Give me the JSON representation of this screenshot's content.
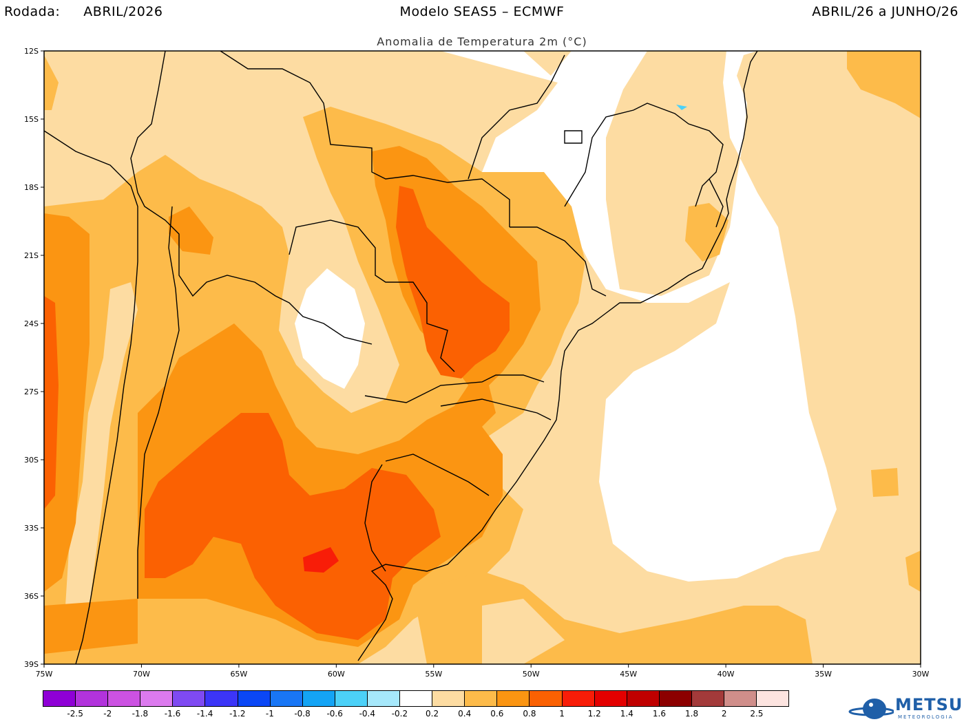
{
  "header": {
    "run_label": "Rodada:",
    "run_value": "ABRIL/2026",
    "model": "Modelo SEAS5 – ECMWF",
    "period": "ABRIL/26 a JUNHO/26"
  },
  "subtitle": "Anomalia de Temperatura 2m (°C)",
  "map": {
    "lat_labels": [
      "12S",
      "15S",
      "18S",
      "21S",
      "24S",
      "27S",
      "30S",
      "33S",
      "36S",
      "39S"
    ],
    "lon_labels": [
      "75W",
      "70W",
      "65W",
      "60W",
      "55W",
      "50W",
      "45W",
      "40W",
      "35W",
      "30W"
    ],
    "anomaly_levels": [
      {
        "range": "0.2 to 0.4",
        "color": "#fddca2"
      },
      {
        "range": "0.4 to 0.6",
        "color": "#fdbb4a"
      },
      {
        "range": "0.6 to 0.8",
        "color": "#fb9512"
      },
      {
        "range": "0.8 to 1",
        "color": "#fb6102"
      },
      {
        "range": "1 to 1.2",
        "color": "#f81d08"
      }
    ]
  },
  "colorbar": {
    "colors": [
      "#8f00d6",
      "#b233dc",
      "#cc52e2",
      "#dc7aee",
      "#7f4af2",
      "#3c35f7",
      "#0b47f5",
      "#1976f5",
      "#14a4f5",
      "#4cd1f8",
      "#a6e8fb",
      "#ffffff",
      "#fddca2",
      "#fdbb4a",
      "#fb9512",
      "#fb6102",
      "#f81d08",
      "#e40000",
      "#c00000",
      "#8c0000",
      "#a33a3a",
      "#d08e8a",
      "#fde4e0"
    ],
    "ticks": [
      "-2.5",
      "-2",
      "-1.8",
      "-1.6",
      "-1.4",
      "-1.2",
      "-1",
      "-0.8",
      "-0.6",
      "-0.4",
      "-0.2",
      "0.2",
      "0.4",
      "0.6",
      "0.8",
      "1",
      "1.2",
      "1.4",
      "1.6",
      "1.8",
      "2",
      "2.5"
    ]
  },
  "logo": {
    "brand": "METSUL",
    "sub": "METEOROLOGIA"
  }
}
